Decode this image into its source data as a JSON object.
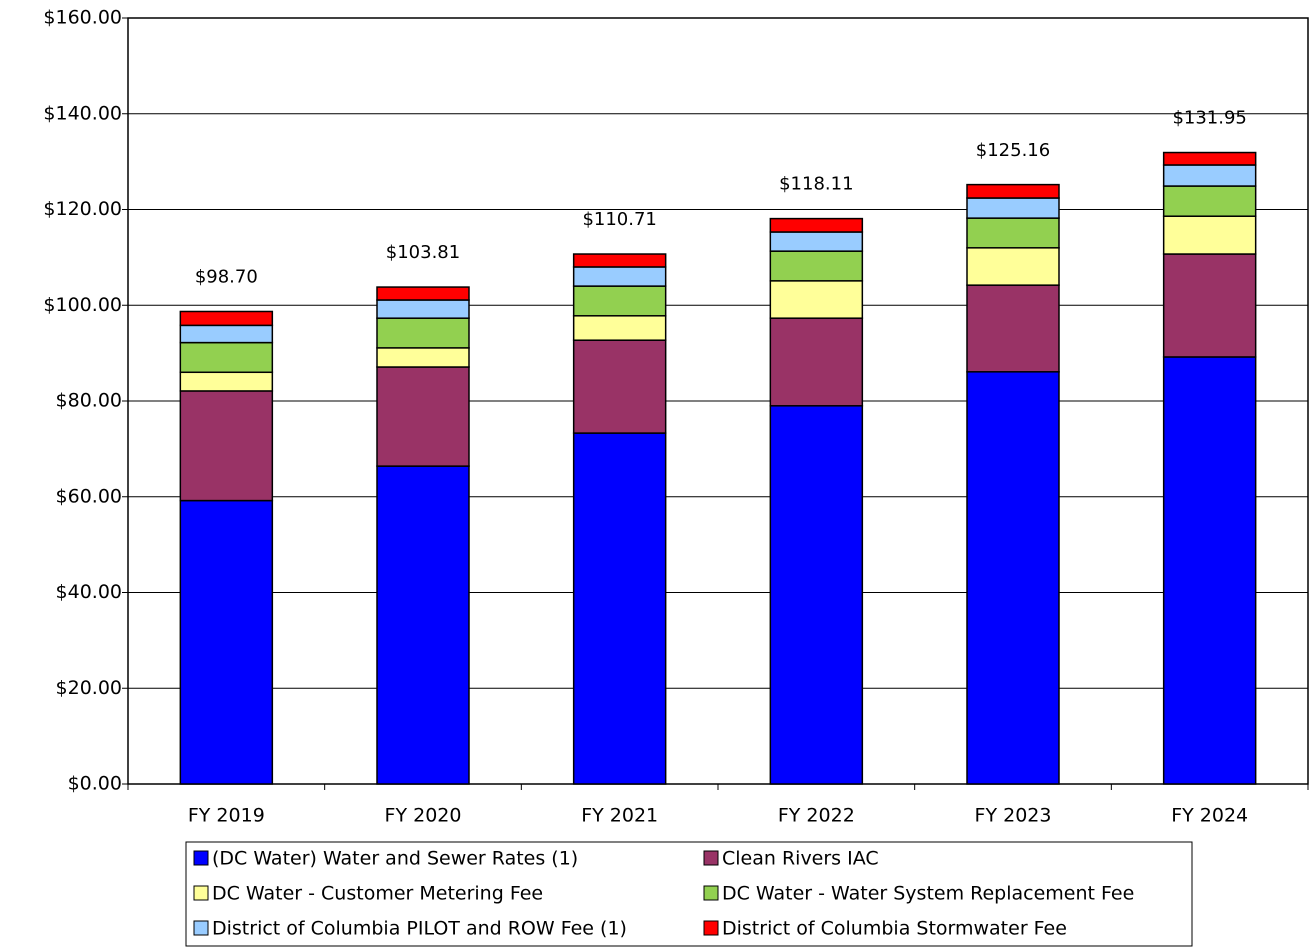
{
  "chart_data": {
    "type": "stacked_bar",
    "categories": [
      "FY 2019",
      "FY 2020",
      "FY 2021",
      "FY 2022",
      "FY 2023",
      "FY 2024"
    ],
    "series": [
      {
        "name": "(DC Water) Water and Sewer Rates (1)",
        "color": "#0000ff",
        "values": [
          59.2,
          66.4,
          73.3,
          79.0,
          86.1,
          89.2
        ]
      },
      {
        "name": "Clean Rivers IAC",
        "color": "#993366",
        "values": [
          22.9,
          20.7,
          19.4,
          18.3,
          18.1,
          21.5
        ]
      },
      {
        "name": "DC Water - Customer Metering Fee",
        "color": "#ffff99",
        "values": [
          3.9,
          4.0,
          5.1,
          7.8,
          7.8,
          7.9
        ]
      },
      {
        "name": "DC Water - Water System Replacement Fee",
        "color": "#92d050",
        "values": [
          6.2,
          6.2,
          6.2,
          6.2,
          6.2,
          6.3
        ]
      },
      {
        "name": "District of Columbia PILOT and ROW Fee (1)",
        "color": "#99ccff",
        "values": [
          3.6,
          3.8,
          4.0,
          4.0,
          4.2,
          4.4
        ]
      },
      {
        "name": "District of Columbia Stormwater Fee",
        "color": "#ff0000",
        "values": [
          2.9,
          2.7,
          2.7,
          2.8,
          2.8,
          2.6
        ]
      }
    ],
    "totals": [
      98.7,
      103.81,
      110.71,
      118.11,
      125.16,
      131.95
    ],
    "total_labels": [
      "$98.70",
      "$103.81",
      "$110.71",
      "$118.11",
      "$125.16",
      "$131.95"
    ],
    "ylim": [
      0,
      160
    ],
    "yticks": [
      {
        "value": 0,
        "label": "$0.00"
      },
      {
        "value": 20,
        "label": "$20.00"
      },
      {
        "value": 40,
        "label": "$40.00"
      },
      {
        "value": 60,
        "label": "$60.00"
      },
      {
        "value": 80,
        "label": "$80.00"
      },
      {
        "value": 100,
        "label": "$100.00"
      },
      {
        "value": 120,
        "label": "$120.00"
      },
      {
        "value": 140,
        "label": "$140.00"
      },
      {
        "value": 160,
        "label": "$160.00"
      }
    ],
    "grid": true,
    "legend": "bottom"
  }
}
